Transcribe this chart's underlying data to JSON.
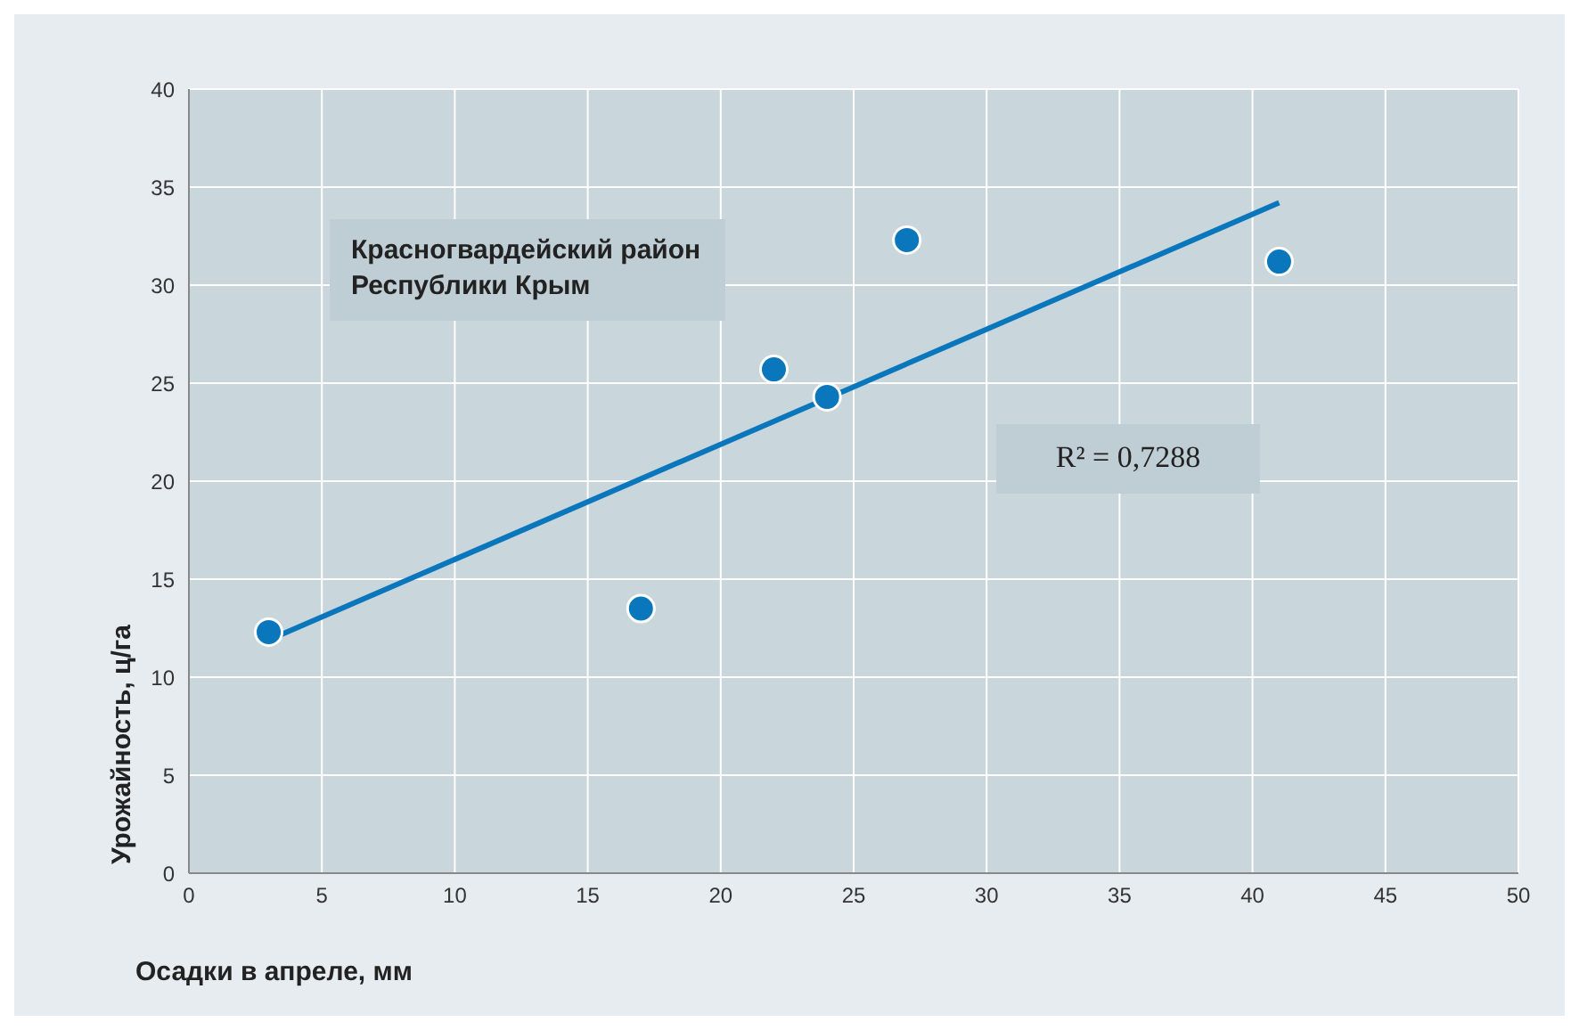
{
  "chart_data": {
    "type": "scatter",
    "xlabel": "Осадки в апреле, мм",
    "ylabel": "Урожайность, ц/га",
    "series": [
      {
        "color": "#0a77bd",
        "x": [
          3,
          17,
          22,
          24,
          27,
          41
        ],
        "values": [
          12.3,
          13.5,
          25.7,
          24.3,
          32.3,
          31.2
        ]
      },
      {
        "type": "line",
        "color": "#0a77bd",
        "x": [
          3,
          41
        ],
        "values": [
          11.9,
          34.2
        ],
        "marker": "none"
      }
    ],
    "annotations": [
      "Красногвардейский район\nРеспублики Крым",
      "R² = 0,7288"
    ],
    "xlim": [
      0,
      50
    ],
    "xticks": [
      0,
      5,
      10,
      15,
      20,
      25,
      30,
      35,
      40,
      45,
      50
    ],
    "ylim": [
      0,
      40
    ],
    "yticks": [
      0,
      5,
      10,
      15,
      20,
      25,
      30,
      35,
      40
    ],
    "grid": true,
    "legend": false,
    "marker": "circle",
    "line_style": "solid"
  }
}
